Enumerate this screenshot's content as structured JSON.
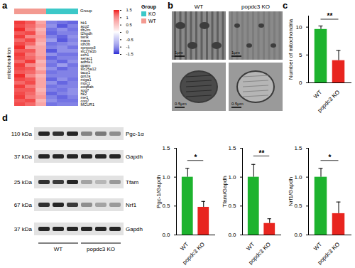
{
  "panel_labels": [
    "a",
    "b",
    "c",
    "d"
  ],
  "chart_data": [
    {
      "type": "heatmap",
      "row_label": "mitochondrion",
      "rows": [
        "hk1",
        "aco2",
        "tfb2m",
        "l2hgdh",
        "twnk",
        "mavs",
        "idh3b",
        "xpnpep3",
        "slc27a1b",
        "ech1",
        "serac1",
        "adhfe1",
        "gpam",
        "slc25a12",
        "taco1",
        "got2a",
        "miga1",
        "mpc1",
        "coq8ab",
        "spg7",
        "hk2",
        "me1",
        "coq7",
        "MCUR1"
      ],
      "column_groups": [
        "WT",
        "WT",
        "WT",
        "KO",
        "KO",
        "KO"
      ],
      "values": [
        [
          1.3,
          1.1,
          0.6,
          -0.9,
          -1.0,
          -1.1
        ],
        [
          1.2,
          1.0,
          0.7,
          -0.8,
          -1.2,
          -0.9
        ],
        [
          1.4,
          0.9,
          0.5,
          -1.0,
          -0.8,
          -1.0
        ],
        [
          1.1,
          1.2,
          0.6,
          -1.1,
          -0.9,
          -0.9
        ],
        [
          1.3,
          0.8,
          0.7,
          -0.9,
          -1.1,
          -0.8
        ],
        [
          1.0,
          1.2,
          0.6,
          -0.7,
          -1.2,
          -0.9
        ],
        [
          1.2,
          1.0,
          0.5,
          -1.0,
          -0.9,
          -0.8
        ],
        [
          1.4,
          0.7,
          0.6,
          -0.9,
          -0.8,
          -1.0
        ],
        [
          1.1,
          1.1,
          0.6,
          -1.2,
          -0.8,
          -0.8
        ],
        [
          1.3,
          0.9,
          0.6,
          -0.8,
          -1.0,
          -1.0
        ],
        [
          1.2,
          1.0,
          0.7,
          -1.1,
          -0.9,
          -0.9
        ],
        [
          1.0,
          1.3,
          0.5,
          -0.9,
          -1.1,
          -0.8
        ],
        [
          1.3,
          0.8,
          0.6,
          -1.0,
          -0.7,
          -1.0
        ],
        [
          1.2,
          1.1,
          0.5,
          -0.8,
          -1.1,
          -0.9
        ],
        [
          1.1,
          1.0,
          0.7,
          -1.0,
          -0.9,
          -0.9
        ],
        [
          1.4,
          0.8,
          0.5,
          -0.9,
          -0.9,
          -0.9
        ],
        [
          1.2,
          1.1,
          0.6,
          -1.1,
          -0.8,
          -1.0
        ],
        [
          1.0,
          1.2,
          0.6,
          -0.8,
          -1.1,
          -0.9
        ],
        [
          1.3,
          0.9,
          0.6,
          -1.0,
          -0.9,
          -0.9
        ],
        [
          1.1,
          1.1,
          0.5,
          -0.9,
          -1.0,
          -0.8
        ],
        [
          1.2,
          1.0,
          0.6,
          -1.1,
          -0.9,
          -0.8
        ],
        [
          1.3,
          0.9,
          0.7,
          -0.9,
          -1.1,
          -0.9
        ],
        [
          1.1,
          1.2,
          0.5,
          -0.8,
          -1.0,
          -1.0
        ],
        [
          1.2,
          1.0,
          0.6,
          -1.0,
          -0.9,
          -0.9
        ]
      ],
      "color_range": [
        -1.5,
        1.5
      ],
      "color_ticks": [
        1.5,
        1,
        0.5,
        0,
        -0.5,
        -1,
        -1.5
      ],
      "colors": [
        "#2e2ed6",
        "#ffffff",
        "#f01e1e"
      ],
      "group_title": "Group",
      "groups": [
        {
          "name": "KO",
          "color": "#3cc8c8"
        },
        {
          "name": "WT",
          "color": "#f39a91"
        }
      ]
    },
    {
      "type": "bar",
      "ylabel": "Number of mitochondria",
      "categories": [
        "WT",
        "popdc3 KO"
      ],
      "values": [
        9.6,
        4.0
      ],
      "errors": [
        0.6,
        1.8
      ],
      "colors": [
        "#1db32e",
        "#e8251f"
      ],
      "ylim": [
        0,
        12
      ],
      "yticks": [
        0,
        5,
        10
      ],
      "significance": "**"
    },
    {
      "type": "bar",
      "ylabel": "Pgc-1/Gapdh",
      "categories": [
        "WT",
        "popdc3 KO"
      ],
      "values": [
        1.0,
        0.48
      ],
      "errors": [
        0.15,
        0.1
      ],
      "colors": [
        "#1db32e",
        "#e8251f"
      ],
      "ylim": [
        0,
        1.5
      ],
      "yticks": [
        {
          "value": 0,
          "label": "0.0"
        },
        {
          "value": 0.5,
          "label": "0.5"
        },
        {
          "value": 1,
          "label": "1.0"
        },
        {
          "value": 1.5,
          "label": "1.5"
        }
      ],
      "significance": "*"
    },
    {
      "type": "bar",
      "ylabel": "Tfam/Gapdh",
      "categories": [
        "WT",
        "popdc3 KO"
      ],
      "values": [
        1.0,
        0.2
      ],
      "errors": [
        0.22,
        0.08
      ],
      "colors": [
        "#1db32e",
        "#e8251f"
      ],
      "ylim": [
        0,
        1.5
      ],
      "yticks": [
        {
          "value": 0,
          "label": "0.0"
        },
        {
          "value": 0.5,
          "label": "0.5"
        },
        {
          "value": 1,
          "label": "1.0"
        },
        {
          "value": 1.5,
          "label": "1.5"
        }
      ],
      "significance": "**"
    },
    {
      "type": "bar",
      "ylabel": "Nrf1/Gapdh",
      "categories": [
        "WT",
        "popdc3 KO"
      ],
      "values": [
        1.0,
        0.37
      ],
      "errors": [
        0.15,
        0.2
      ],
      "colors": [
        "#1db32e",
        "#e8251f"
      ],
      "ylim": [
        0,
        1.5
      ],
      "yticks": [
        {
          "value": 0,
          "label": "0.0"
        },
        {
          "value": 0.5,
          "label": "0.5"
        },
        {
          "value": 1,
          "label": "1.0"
        },
        {
          "value": 1.5,
          "label": "1.5"
        }
      ],
      "significance": "*"
    }
  ],
  "em": {
    "labels": [
      "WT",
      "popdc3 KO"
    ],
    "scale_bars": [
      "1μm",
      "0.5μm"
    ]
  },
  "blot": {
    "groups": [
      "WT",
      "popdc3 KO"
    ],
    "rows": [
      {
        "kda": "110 kDa",
        "protein": "Pgc-1α",
        "bands": [
          0.9,
          0.85,
          0.9,
          0.45,
          0.5,
          0.4
        ]
      },
      {
        "kda": "37 kDa",
        "protein": "Gapdh",
        "bands": [
          0.9,
          0.9,
          0.9,
          0.9,
          0.9,
          0.9
        ]
      },
      {
        "kda": "25 kDa",
        "protein": "Tfam",
        "bands": [
          0.85,
          0.8,
          0.9,
          0.3,
          0.2,
          0.35
        ]
      },
      {
        "kda": "67 kDa",
        "protein": "Nrf1",
        "bands": [
          0.85,
          0.9,
          0.8,
          0.4,
          0.3,
          0.35
        ]
      },
      {
        "kda": "37 kDa",
        "protein": "Gapdh",
        "bands": [
          0.9,
          0.9,
          0.9,
          0.9,
          0.9,
          0.9
        ]
      }
    ]
  }
}
